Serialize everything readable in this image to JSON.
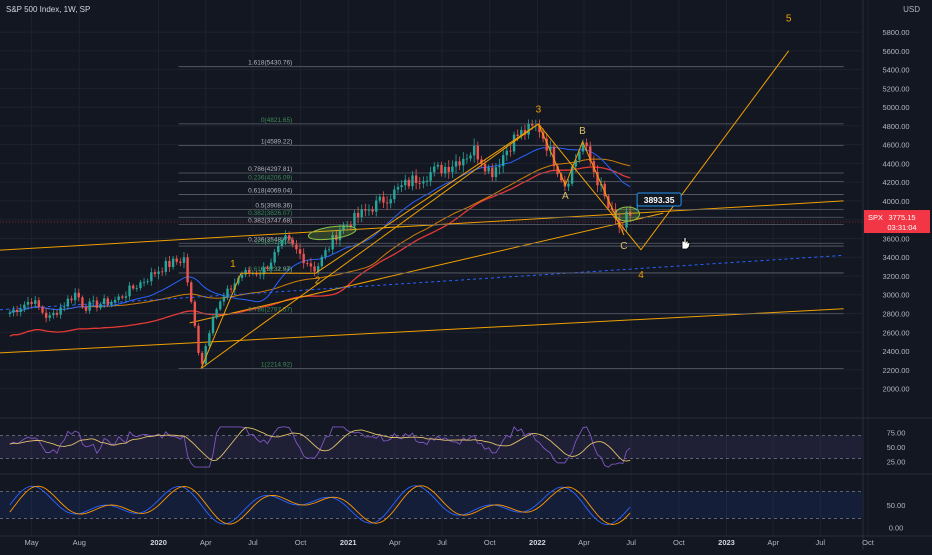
{
  "header": {
    "title": "S&P 500 Index, 1W, SP",
    "currency": "USD"
  },
  "colors": {
    "background": "#131722",
    "grid": "#1e222d",
    "up": "#26a69a",
    "down": "#ef5350",
    "wave": "#f0a000",
    "fib_line": "#5d606b",
    "fib_label_green": "#3d8b58",
    "ma_blue": "#2962ff",
    "ma_red": "#e53935",
    "ma_orange": "#ff9800",
    "rsi": "#7e57c2",
    "price_tag": "#f23645",
    "ellipse": "#8bc34a"
  },
  "chart_data": {
    "type": "candlestick",
    "title": "S&P 500 Index, 1W, SP",
    "y_axis": {
      "ticks": [
        2000,
        2200,
        2400,
        2600,
        2800,
        3000,
        3200,
        3400,
        3600,
        3800,
        4000,
        4200,
        4400,
        4600,
        4800,
        5000,
        5200,
        5400,
        5600,
        5800
      ],
      "tick_labels": [
        "2000.00",
        "2200.00",
        "2400.00",
        "2600.00",
        "2800.00",
        "3000.00",
        "3200.00",
        "3400.00",
        "3600.00",
        "3800.00",
        "4000.00",
        "4200.00",
        "4400.00",
        "4600.00",
        "4800.00",
        "5000.00",
        "5200.00",
        "5400.00",
        "5600.00",
        "5800.00"
      ],
      "range": [
        1750,
        5950
      ]
    },
    "x_axis": {
      "ticks": [
        "May",
        "Aug",
        "2020",
        "Apr",
        "Jul",
        "Oct",
        "2021",
        "Apr",
        "Jul",
        "Oct",
        "2022",
        "Apr",
        "Jul",
        "Oct",
        "2023",
        "Apr",
        "Jul",
        "Oct"
      ],
      "tick_dates": [
        "2019-05-01",
        "2019-08-01",
        "2020-01-01",
        "2020-04-01",
        "2020-07-01",
        "2020-10-01",
        "2021-01-01",
        "2021-04-01",
        "2021-07-01",
        "2021-10-01",
        "2022-01-01",
        "2022-04-01",
        "2022-07-01",
        "2022-10-01",
        "2023-01-01",
        "2023-04-01",
        "2023-07-01",
        "2023-10-01"
      ],
      "bold": [
        "2020",
        "2021",
        "2022",
        "2023"
      ]
    },
    "price_anchors": [
      [
        "2019-03-20",
        2810
      ],
      [
        "2019-05-01",
        2945
      ],
      [
        "2019-06-03",
        2744
      ],
      [
        "2019-07-26",
        3025
      ],
      [
        "2019-08-10",
        2870
      ],
      [
        "2019-10-10",
        2940
      ],
      [
        "2020-01-10",
        3300
      ],
      [
        "2020-02-19",
        3386
      ],
      [
        "2020-03-23",
        2237
      ],
      [
        "2020-04-15",
        2800
      ],
      [
        "2020-06-08",
        3220
      ],
      [
        "2020-07-20",
        3250
      ],
      [
        "2020-09-02",
        3580
      ],
      [
        "2020-10-30",
        3270
      ],
      [
        "2020-12-15",
        3700
      ],
      [
        "2021-02-15",
        3930
      ],
      [
        "2021-05-07",
        4230
      ],
      [
        "2021-07-15",
        4380
      ],
      [
        "2021-09-02",
        4545
      ],
      [
        "2021-10-04",
        4300
      ],
      [
        "2021-11-20",
        4690
      ],
      [
        "2022-01-03",
        4796
      ],
      [
        "2022-02-24",
        4170
      ],
      [
        "2022-03-29",
        4630
      ],
      [
        "2022-05-20",
        3900
      ],
      [
        "2022-06-17",
        3637
      ],
      [
        "2022-06-24",
        3912
      ],
      [
        "2022-07-01",
        3830
      ]
    ],
    "current_price": "3775.15",
    "countdown": "03:31:04",
    "symbol": "SPX",
    "price_callout": "3893.35",
    "wave_labels": [
      {
        "text": "1",
        "date": "2020-06-08",
        "price": 3230
      },
      {
        "text": "2",
        "date": "2020-10-30",
        "price": 3270
      },
      {
        "text": "3",
        "date": "2022-01-03",
        "price": 4796
      },
      {
        "text": "4",
        "date": "2022-07-20",
        "price": 3350
      },
      {
        "text": "5",
        "date": "2023-05-01",
        "price": 5700
      },
      {
        "text": "A",
        "date": "2022-02-24",
        "price": 4170
      },
      {
        "text": "B",
        "date": "2022-03-29",
        "price": 4630
      },
      {
        "text": "C",
        "date": "2022-06-17",
        "price": 3637
      }
    ],
    "fib_levels": [
      {
        "label": "1.618(5430.76)",
        "price": 5430.76
      },
      {
        "label": "0(4821.65)",
        "price": 4821.65
      },
      {
        "label": "1(4589.22)",
        "price": 4589.22
      },
      {
        "label": "0.786(4297.81)",
        "price": 4297.81
      },
      {
        "label": "0.236(4206.09)",
        "price": 4206.09
      },
      {
        "label": "0.618(4069.04)",
        "price": 4069.04
      },
      {
        "label": "0.5(3908.36)",
        "price": 3908.36
      },
      {
        "label": "0.382(3826.07)",
        "price": 3826.07
      },
      {
        "label": "0.382(3747.68)",
        "price": 3747.68
      },
      {
        "label": "0.236(3548.67)",
        "price": 3548.67
      },
      {
        "label": "0.5(3518.64)",
        "price": 3518.64
      },
      {
        "label": "0(3232.97)",
        "price": 3232.97
      },
      {
        "label": "0.618(3231.34)",
        "price": 3231.34
      },
      {
        "label": "0.786(2797.57)",
        "price": 2797.57
      },
      {
        "label": "1(2214.92)",
        "price": 2214.92
      }
    ],
    "rsi": {
      "ticks": [
        25,
        50,
        75
      ],
      "tick_labels": [
        "25.00",
        "50.00",
        "75.00"
      ],
      "range": [
        10,
        90
      ]
    },
    "stoch": {
      "ticks": [
        0,
        50
      ],
      "tick_labels": [
        "0.00",
        "50.00"
      ],
      "range": [
        -10,
        110
      ]
    },
    "grid": true
  }
}
